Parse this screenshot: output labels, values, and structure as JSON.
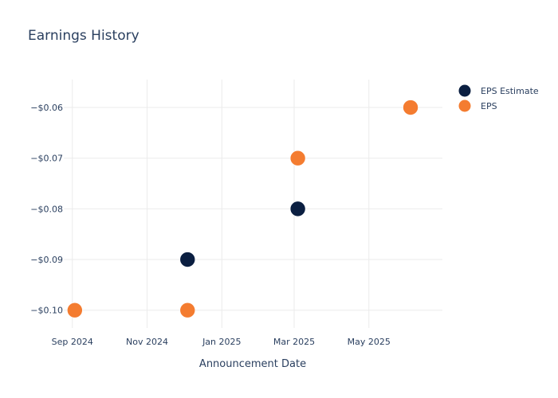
{
  "chart_data": {
    "type": "scatter",
    "title": "Earnings History",
    "xlabel": "Announcement Date",
    "ylabel": "",
    "x_ticks": [
      {
        "date": "2024-09-01",
        "label": "Sep 2024"
      },
      {
        "date": "2024-11-01",
        "label": "Nov 2024"
      },
      {
        "date": "2025-01-01",
        "label": "Jan 2025"
      },
      {
        "date": "2025-03-01",
        "label": "Mar 2025"
      },
      {
        "date": "2025-05-01",
        "label": "May 2025"
      }
    ],
    "y_ticks": [
      {
        "value": -0.06,
        "label": "−$0.06"
      },
      {
        "value": -0.07,
        "label": "−$0.07"
      },
      {
        "value": -0.08,
        "label": "−$0.08"
      },
      {
        "value": -0.09,
        "label": "−$0.09"
      },
      {
        "value": -0.1,
        "label": "−$0.10"
      }
    ],
    "xlim": [
      "2024-08-25",
      "2025-06-30"
    ],
    "ylim": [
      -0.1035,
      -0.0545
    ],
    "grid": true,
    "legend_position": "top-right",
    "series": [
      {
        "name": "EPS Estimate",
        "color": "#0b1f41",
        "points": [
          {
            "x": "2024-09-03",
            "y": -0.1
          },
          {
            "x": "2024-12-04",
            "y": -0.09
          },
          {
            "x": "2025-03-04",
            "y": -0.08
          },
          {
            "x": "2025-06-04",
            "y": -0.06
          }
        ]
      },
      {
        "name": "EPS",
        "color": "#f47c30",
        "points": [
          {
            "x": "2024-09-03",
            "y": -0.1
          },
          {
            "x": "2024-12-04",
            "y": -0.1
          },
          {
            "x": "2025-03-04",
            "y": -0.07
          },
          {
            "x": "2025-06-04",
            "y": -0.06
          }
        ]
      }
    ]
  }
}
